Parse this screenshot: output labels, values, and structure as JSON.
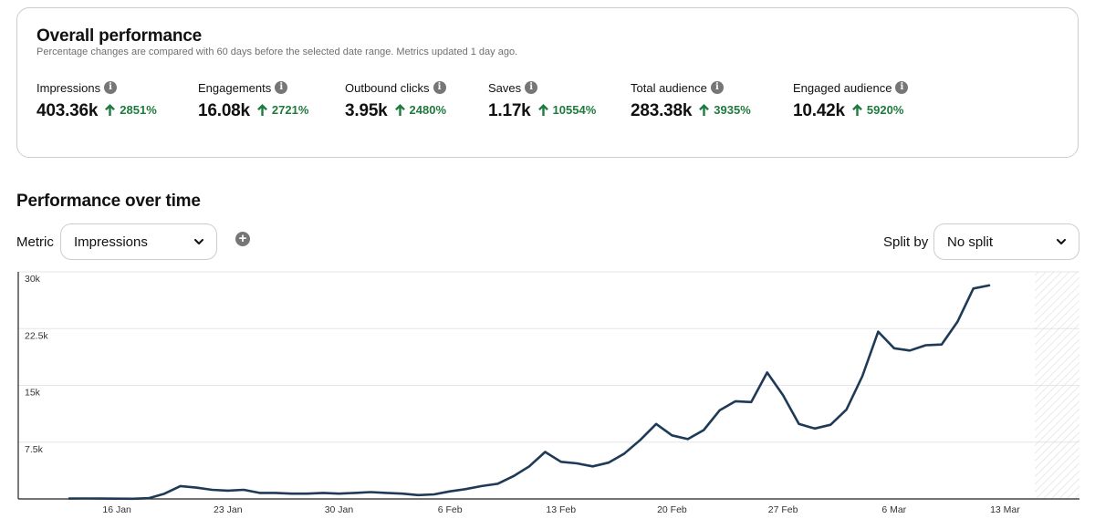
{
  "overall": {
    "title": "Overall performance",
    "subtitle": "Percentage changes are compared with 60 days before the selected date range. Metrics updated 1 day ago.",
    "metrics": [
      {
        "label": "Impressions",
        "value": "403.36k",
        "change": "2851%"
      },
      {
        "label": "Engagements",
        "value": "16.08k",
        "change": "2721%"
      },
      {
        "label": "Outbound clicks",
        "value": "3.95k",
        "change": "2480%"
      },
      {
        "label": "Saves",
        "value": "1.17k",
        "change": "10554%"
      },
      {
        "label": "Total audience",
        "value": "283.38k",
        "change": "3935%"
      },
      {
        "label": "Engaged audience",
        "value": "10.42k",
        "change": "5920%"
      }
    ],
    "info_icon_glyph": "i",
    "change_color": "#1f7a3e"
  },
  "performance": {
    "title": "Performance over time",
    "metric_label": "Metric",
    "metric_selected": "Impressions",
    "add_glyph": "+",
    "split_label": "Split by",
    "split_selected": "No split"
  },
  "chart_data": {
    "type": "line",
    "title": "",
    "xlabel": "",
    "ylabel": "",
    "ylim": [
      0,
      30000
    ],
    "y_ticks": [
      {
        "value": 30000,
        "label": "30k"
      },
      {
        "value": 22500,
        "label": "22.5k"
      },
      {
        "value": 15000,
        "label": "15k"
      },
      {
        "value": 7500,
        "label": "7.5k"
      }
    ],
    "x_ticks": [
      {
        "day": 3,
        "label": "16 Jan"
      },
      {
        "day": 10,
        "label": "23 Jan"
      },
      {
        "day": 17,
        "label": "30 Jan"
      },
      {
        "day": 24,
        "label": "6 Feb"
      },
      {
        "day": 31,
        "label": "13 Feb"
      },
      {
        "day": 38,
        "label": "20 Feb"
      },
      {
        "day": 45,
        "label": "27 Feb"
      },
      {
        "day": 52,
        "label": "6 Mar"
      },
      {
        "day": 59,
        "label": "13 Mar"
      }
    ],
    "series": [
      {
        "name": "Impressions",
        "color": "#1e3a57",
        "values": [
          50,
          60,
          50,
          40,
          30,
          100,
          700,
          1700,
          1500,
          1200,
          1100,
          1200,
          800,
          800,
          700,
          700,
          800,
          700,
          800,
          900,
          800,
          700,
          500,
          600,
          1000,
          1300,
          1700,
          2000,
          3000,
          4300,
          6200,
          4900,
          4700,
          4300,
          4800,
          6000,
          7800,
          9900,
          8400,
          7900,
          9100,
          11700,
          12900,
          12800,
          16700,
          13700,
          9900,
          9300,
          9800,
          11800,
          16200,
          22100,
          19900,
          19600,
          20300,
          20400,
          23400,
          27800,
          28200
        ]
      }
    ]
  }
}
